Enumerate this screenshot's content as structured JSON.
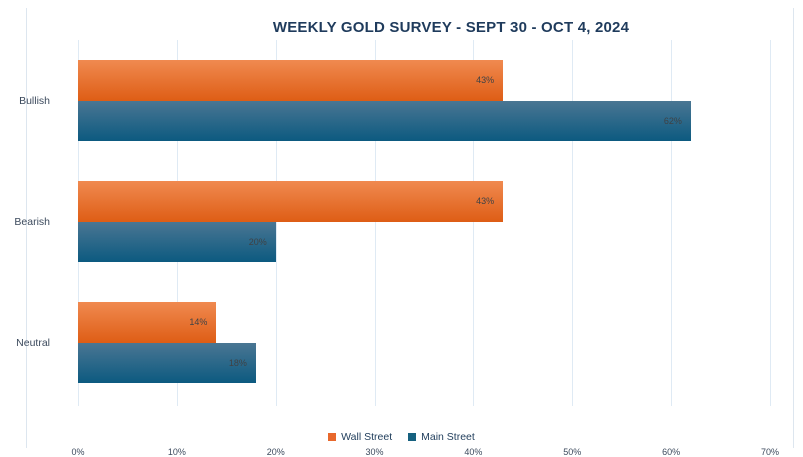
{
  "title": "WEEKLY GOLD SURVEY - SEPT 30 - OCT 4, 2024",
  "chart_data": {
    "type": "bar",
    "orientation": "horizontal",
    "title": "WEEKLY GOLD SURVEY - SEPT 30 - OCT 4, 2024",
    "categories": [
      "Bullish",
      "Bearish",
      "Neutral"
    ],
    "series": [
      {
        "name": "Wall Street",
        "values": [
          43,
          43,
          14
        ],
        "color": "#e8682c",
        "gradient_top": "#f08a50",
        "gradient_bottom": "#de5d15"
      },
      {
        "name": "Main Street",
        "values": [
          62,
          20,
          18
        ],
        "color": "#16617f",
        "gradient_top": "#4a7693",
        "gradient_bottom": "#0c5a80"
      }
    ],
    "data_labels": [
      "43%",
      "62%",
      "43%",
      "20%",
      "14%",
      "18%"
    ],
    "value_suffix": "%",
    "xlim": [
      0,
      70
    ],
    "x_ticks": [
      0,
      10,
      20,
      30,
      40,
      50,
      60,
      70
    ],
    "x_tick_labels": [
      "0%",
      "10%",
      "20%",
      "30%",
      "40%",
      "50%",
      "60%",
      "70%"
    ],
    "grid": true,
    "legend_position": "bottom",
    "data_label_position": "inside-end"
  },
  "colors": {
    "title_text": "#1f3b5c",
    "axis_text": "#3c4a5d",
    "data_label_text": "#3f4245",
    "gridline": "#dfeaf4",
    "frame_border": "#dde6ef",
    "background": "#ffffff"
  }
}
